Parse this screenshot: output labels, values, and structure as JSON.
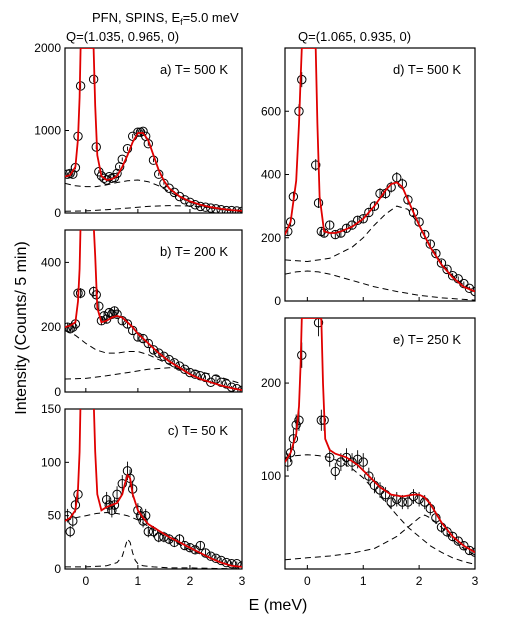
{
  "header": {
    "line1_prefix": "PFN, SPINS, E",
    "line1_sub": "f",
    "line1_suffix": "=5.0 meV",
    "q_left": "Q=(1.035, 0.965, 0)",
    "q_right": "Q=(1.065, 0.935, 0)"
  },
  "xlabel": "E (meV)",
  "ylabel": "Intensity (Counts/ 5 min)",
  "colors": {
    "fit": "#e00000",
    "data": "#000000",
    "components": "#000000"
  },
  "chart_data": [
    {
      "id": "a",
      "type": "line",
      "title": "a) T= 500 K",
      "xlim": [
        -0.4,
        3.0
      ],
      "ylim": [
        0,
        2000
      ],
      "xticks": [],
      "yticks": [
        0,
        1000,
        2000
      ],
      "points": {
        "x": [
          -0.35,
          -0.3,
          -0.25,
          -0.2,
          -0.15,
          -0.1,
          0.15,
          0.2,
          0.25,
          0.3,
          0.35,
          0.4,
          0.45,
          0.5,
          0.55,
          0.6,
          0.65,
          0.7,
          0.8,
          0.9,
          1.0,
          1.05,
          1.1,
          1.15,
          1.2,
          1.3,
          1.4,
          1.5,
          1.6,
          1.7,
          1.8,
          1.9,
          2.0,
          2.1,
          2.2,
          2.3,
          2.4,
          2.5,
          2.6,
          2.7,
          2.8,
          2.9,
          3.0
        ],
        "y": [
          470,
          480,
          470,
          550,
          930,
          1540,
          1620,
          800,
          500,
          450,
          420,
          400,
          440,
          420,
          430,
          480,
          560,
          650,
          780,
          930,
          980,
          980,
          990,
          930,
          840,
          640,
          470,
          360,
          300,
          250,
          200,
          160,
          130,
          100,
          80,
          70,
          60,
          50,
          40,
          30,
          30,
          25,
          20
        ]
      },
      "fit": {
        "x": [
          -0.4,
          -0.3,
          -0.2,
          -0.15,
          -0.12,
          -0.1,
          0.15,
          0.18,
          0.22,
          0.3,
          0.4,
          0.5,
          0.6,
          0.7,
          0.8,
          0.9,
          1.0,
          1.1,
          1.2,
          1.3,
          1.4,
          1.5,
          1.6,
          1.8,
          2.0,
          2.2,
          2.4,
          2.6,
          2.8,
          3.0
        ],
        "y": [
          440,
          460,
          560,
          900,
          1400,
          2000,
          2000,
          1300,
          700,
          450,
          400,
          410,
          450,
          560,
          700,
          860,
          970,
          970,
          880,
          700,
          520,
          390,
          300,
          200,
          140,
          100,
          70,
          50,
          35,
          25
        ]
      },
      "components": [
        {
          "x": [
            -0.4,
            -0.2,
            0,
            0.2,
            0.4,
            0.6,
            0.8,
            1.0,
            1.2,
            1.4,
            1.6,
            1.8,
            2.0,
            2.4,
            2.8,
            3.0
          ],
          "y": [
            360,
            330,
            320,
            320,
            340,
            370,
            390,
            400,
            380,
            330,
            260,
            190,
            130,
            60,
            25,
            15
          ]
        },
        {
          "x": [
            -0.4,
            0,
            0.4,
            0.8,
            1.2,
            1.6,
            2.0,
            2.4,
            2.8,
            3.0
          ],
          "y": [
            20,
            25,
            40,
            60,
            80,
            90,
            85,
            65,
            40,
            30
          ]
        }
      ]
    },
    {
      "id": "b",
      "type": "line",
      "title": "b) T= 200 K",
      "xlim": [
        -0.4,
        3.0
      ],
      "ylim": [
        0,
        500
      ],
      "xticks": [],
      "yticks": [
        0,
        200,
        400
      ],
      "points": {
        "x": [
          -0.35,
          -0.3,
          -0.25,
          -0.2,
          -0.15,
          -0.1,
          0.15,
          0.2,
          0.25,
          0.3,
          0.35,
          0.4,
          0.45,
          0.5,
          0.55,
          0.6,
          0.7,
          0.8,
          0.9,
          1.0,
          1.1,
          1.2,
          1.3,
          1.4,
          1.5,
          1.6,
          1.7,
          1.8,
          1.9,
          2.0,
          2.1,
          2.2,
          2.3,
          2.4,
          2.5,
          2.6,
          2.7,
          2.8,
          2.9,
          3.0
        ],
        "y": [
          200,
          195,
          200,
          210,
          305,
          305,
          310,
          300,
          265,
          220,
          235,
          225,
          245,
          240,
          250,
          240,
          220,
          210,
          190,
          170,
          165,
          150,
          130,
          120,
          110,
          100,
          90,
          80,
          70,
          60,
          55,
          50,
          45,
          30,
          40,
          30,
          25,
          15,
          10,
          5
        ]
      },
      "fit": {
        "x": [
          -0.4,
          -0.3,
          -0.2,
          -0.15,
          -0.12,
          -0.1,
          0.15,
          0.18,
          0.22,
          0.3,
          0.4,
          0.5,
          0.6,
          0.7,
          0.8,
          0.9,
          1.0,
          1.2,
          1.4,
          1.6,
          1.8,
          2.0,
          2.2,
          2.4,
          2.6,
          2.8,
          3.0
        ],
        "y": [
          200,
          205,
          215,
          280,
          380,
          520,
          520,
          420,
          260,
          215,
          220,
          230,
          235,
          230,
          215,
          200,
          180,
          150,
          120,
          95,
          75,
          55,
          40,
          30,
          20,
          12,
          6
        ]
      },
      "components": [
        {
          "x": [
            -0.4,
            -0.2,
            0,
            0.2,
            0.4,
            0.6,
            0.8,
            1.0,
            1.2,
            1.4,
            1.6,
            1.8,
            2.0,
            2.2,
            2.4,
            2.6,
            2.8,
            3.0
          ],
          "y": [
            190,
            175,
            150,
            130,
            120,
            120,
            125,
            125,
            115,
            100,
            85,
            70,
            55,
            40,
            30,
            20,
            12,
            6
          ]
        },
        {
          "x": [
            -0.4,
            0,
            0.4,
            0.8,
            1.2,
            1.6,
            2.0,
            2.4,
            2.8,
            3.0
          ],
          "y": [
            40,
            42,
            50,
            60,
            70,
            75,
            70,
            55,
            35,
            25
          ]
        }
      ]
    },
    {
      "id": "c",
      "type": "line",
      "title": "c) T= 50 K",
      "xlim": [
        -0.4,
        3.0
      ],
      "ylim": [
        0,
        150
      ],
      "xticks": [
        0,
        1,
        2,
        3
      ],
      "yticks": [
        0,
        50,
        100,
        150
      ],
      "points": {
        "x": [
          -0.35,
          -0.3,
          -0.25,
          -0.2,
          -0.15,
          0.4,
          0.45,
          0.5,
          0.55,
          0.6,
          0.7,
          0.8,
          0.85,
          0.9,
          1.0,
          1.05,
          1.1,
          1.15,
          1.2,
          1.3,
          1.4,
          1.5,
          1.6,
          1.7,
          1.8,
          1.9,
          2.0,
          2.1,
          2.2,
          2.3,
          2.4,
          2.5,
          2.6,
          2.7,
          2.8,
          2.9,
          3.0
        ],
        "y": [
          50,
          35,
          45,
          60,
          70,
          65,
          60,
          55,
          60,
          70,
          80,
          92,
          85,
          75,
          55,
          50,
          45,
          50,
          35,
          35,
          30,
          30,
          28,
          25,
          28,
          22,
          20,
          18,
          22,
          15,
          12,
          10,
          8,
          6,
          5,
          5,
          3
        ]
      },
      "fit": {
        "x": [
          -0.4,
          -0.3,
          -0.2,
          -0.15,
          -0.12,
          -0.1,
          0.15,
          0.18,
          0.22,
          0.3,
          0.4,
          0.5,
          0.6,
          0.7,
          0.75,
          0.8,
          0.85,
          0.9,
          1.0,
          1.1,
          1.2,
          1.4,
          1.6,
          1.8,
          2.0,
          2.2,
          2.4,
          2.6,
          2.8,
          3.0
        ],
        "y": [
          45,
          48,
          55,
          75,
          110,
          160,
          160,
          110,
          70,
          55,
          58,
          60,
          62,
          70,
          80,
          88,
          85,
          70,
          55,
          48,
          42,
          36,
          30,
          25,
          20,
          15,
          10,
          6,
          3,
          2
        ]
      },
      "components": [
        {
          "x": [
            -0.4,
            -0.2,
            0,
            0.2,
            0.4,
            0.6,
            0.8,
            1.0,
            1.2,
            1.4,
            1.6,
            1.8,
            2.0,
            2.2,
            2.4,
            2.6,
            2.8,
            3.0
          ],
          "y": [
            45,
            48,
            50,
            52,
            53,
            52,
            50,
            46,
            40,
            34,
            28,
            23,
            18,
            14,
            10,
            6,
            3,
            2
          ]
        },
        {
          "x": [
            -0.4,
            0,
            0.4,
            0.6,
            0.7,
            0.75,
            0.8,
            0.85,
            0.9,
            0.95,
            1.0,
            1.1,
            1.3,
            1.6,
            2.0,
            2.5,
            3.0
          ],
          "y": [
            2,
            2,
            3,
            6,
            12,
            20,
            28,
            25,
            15,
            8,
            5,
            3,
            2,
            1,
            1,
            0.5,
            0.3
          ]
        }
      ]
    },
    {
      "id": "d",
      "type": "line",
      "title": "d) T= 500 K",
      "xlim": [
        -0.4,
        3.0
      ],
      "ylim": [
        0,
        800
      ],
      "xticks": [],
      "yticks": [
        0,
        200,
        400,
        600
      ],
      "points": {
        "x": [
          -0.35,
          -0.3,
          -0.25,
          -0.15,
          -0.1,
          0.15,
          0.2,
          0.25,
          0.3,
          0.4,
          0.5,
          0.6,
          0.7,
          0.8,
          0.9,
          1.0,
          1.1,
          1.2,
          1.3,
          1.4,
          1.5,
          1.6,
          1.7,
          1.8,
          1.9,
          2.0,
          2.1,
          2.2,
          2.3,
          2.4,
          2.5,
          2.6,
          2.7,
          2.8,
          2.9,
          3.0
        ],
        "y": [
          220,
          250,
          330,
          600,
          700,
          430,
          310,
          220,
          215,
          240,
          210,
          215,
          230,
          240,
          255,
          260,
          280,
          300,
          340,
          340,
          360,
          390,
          370,
          320,
          280,
          250,
          210,
          180,
          150,
          120,
          100,
          80,
          70,
          55,
          40,
          30
        ]
      },
      "fit": {
        "x": [
          -0.4,
          -0.3,
          -0.2,
          -0.15,
          -0.12,
          -0.1,
          0.15,
          0.18,
          0.22,
          0.3,
          0.4,
          0.5,
          0.6,
          0.8,
          1.0,
          1.2,
          1.4,
          1.5,
          1.6,
          1.7,
          1.8,
          2.0,
          2.2,
          2.4,
          2.6,
          2.8,
          3.0
        ],
        "y": [
          210,
          250,
          380,
          560,
          700,
          800,
          800,
          560,
          330,
          220,
          215,
          215,
          220,
          235,
          260,
          300,
          350,
          370,
          375,
          360,
          320,
          240,
          170,
          115,
          75,
          45,
          30
        ]
      },
      "components": [
        {
          "x": [
            -0.4,
            0,
            0.4,
            0.8,
            1.0,
            1.2,
            1.4,
            1.6,
            1.8,
            2.0,
            2.2,
            2.4,
            2.6,
            2.8,
            3.0
          ],
          "y": [
            130,
            125,
            135,
            170,
            200,
            240,
            275,
            300,
            290,
            240,
            175,
            120,
            80,
            50,
            30
          ]
        },
        {
          "x": [
            -0.4,
            -0.2,
            0,
            0.2,
            0.4,
            0.8,
            1.2,
            1.6,
            2.0,
            2.4,
            2.8,
            3.0
          ],
          "y": [
            85,
            92,
            95,
            92,
            85,
            65,
            45,
            30,
            18,
            10,
            5,
            3
          ]
        }
      ]
    },
    {
      "id": "e",
      "type": "line",
      "title": "e) T= 250 K",
      "xlim": [
        -0.4,
        3.0
      ],
      "ylim": [
        0,
        270
      ],
      "xticks": [
        0,
        1,
        2,
        3
      ],
      "yticks": [
        100,
        200
      ],
      "points": {
        "x": [
          -0.35,
          -0.3,
          -0.25,
          -0.2,
          -0.15,
          -0.1,
          0.2,
          0.25,
          0.3,
          0.4,
          0.5,
          0.6,
          0.7,
          0.8,
          0.9,
          1.0,
          1.1,
          1.2,
          1.3,
          1.4,
          1.5,
          1.6,
          1.7,
          1.8,
          1.9,
          2.0,
          2.1,
          2.2,
          2.3,
          2.4,
          2.5,
          2.6,
          2.7,
          2.8,
          2.9,
          3.0
        ],
        "y": [
          115,
          125,
          140,
          155,
          160,
          230,
          265,
          160,
          160,
          120,
          105,
          115,
          120,
          115,
          118,
          115,
          100,
          90,
          85,
          80,
          72,
          75,
          72,
          72,
          78,
          75,
          72,
          65,
          55,
          45,
          40,
          35,
          30,
          25,
          20,
          18
        ]
      },
      "fit": {
        "x": [
          -0.4,
          -0.3,
          -0.2,
          -0.15,
          -0.12,
          -0.1,
          0.25,
          0.28,
          0.32,
          0.4,
          0.5,
          0.7,
          0.9,
          1.1,
          1.3,
          1.5,
          1.7,
          1.9,
          2.0,
          2.1,
          2.2,
          2.4,
          2.6,
          2.8,
          3.0
        ],
        "y": [
          115,
          125,
          145,
          175,
          220,
          270,
          270,
          200,
          140,
          128,
          124,
          120,
          112,
          100,
          88,
          80,
          78,
          80,
          80,
          77,
          70,
          50,
          35,
          25,
          18
        ]
      },
      "components": [
        {
          "x": [
            -0.4,
            -0.2,
            0,
            0.2,
            0.4,
            0.6,
            0.8,
            1.0,
            1.2,
            1.4,
            1.6,
            1.8,
            2.0,
            2.2,
            2.4,
            2.6,
            2.8,
            3.0
          ],
          "y": [
            120,
            122,
            123,
            122,
            120,
            115,
            108,
            98,
            85,
            72,
            58,
            45,
            35,
            25,
            18,
            12,
            8,
            5
          ]
        },
        {
          "x": [
            -0.4,
            0,
            0.4,
            0.8,
            1.2,
            1.6,
            1.8,
            2.0,
            2.1,
            2.2,
            2.4,
            2.6,
            2.8,
            3.0
          ],
          "y": [
            10,
            12,
            14,
            17,
            22,
            35,
            45,
            55,
            58,
            55,
            45,
            32,
            22,
            15
          ]
        }
      ]
    }
  ]
}
